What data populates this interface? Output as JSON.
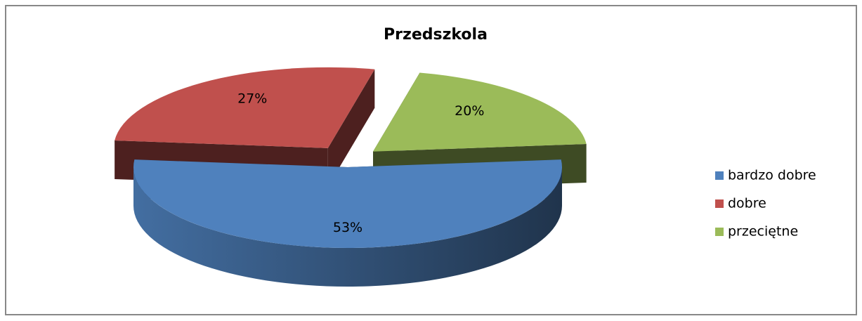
{
  "chart_data": {
    "type": "pie",
    "title": "Przedszkola",
    "categories": [
      "bardzo dobre",
      "dobre",
      "przeciętne"
    ],
    "values": [
      53,
      27,
      20
    ],
    "value_labels": [
      "53%",
      "27%",
      "20%"
    ],
    "colors": [
      "#4f81bd",
      "#c0504d",
      "#9bbb59"
    ],
    "legend": "right"
  }
}
